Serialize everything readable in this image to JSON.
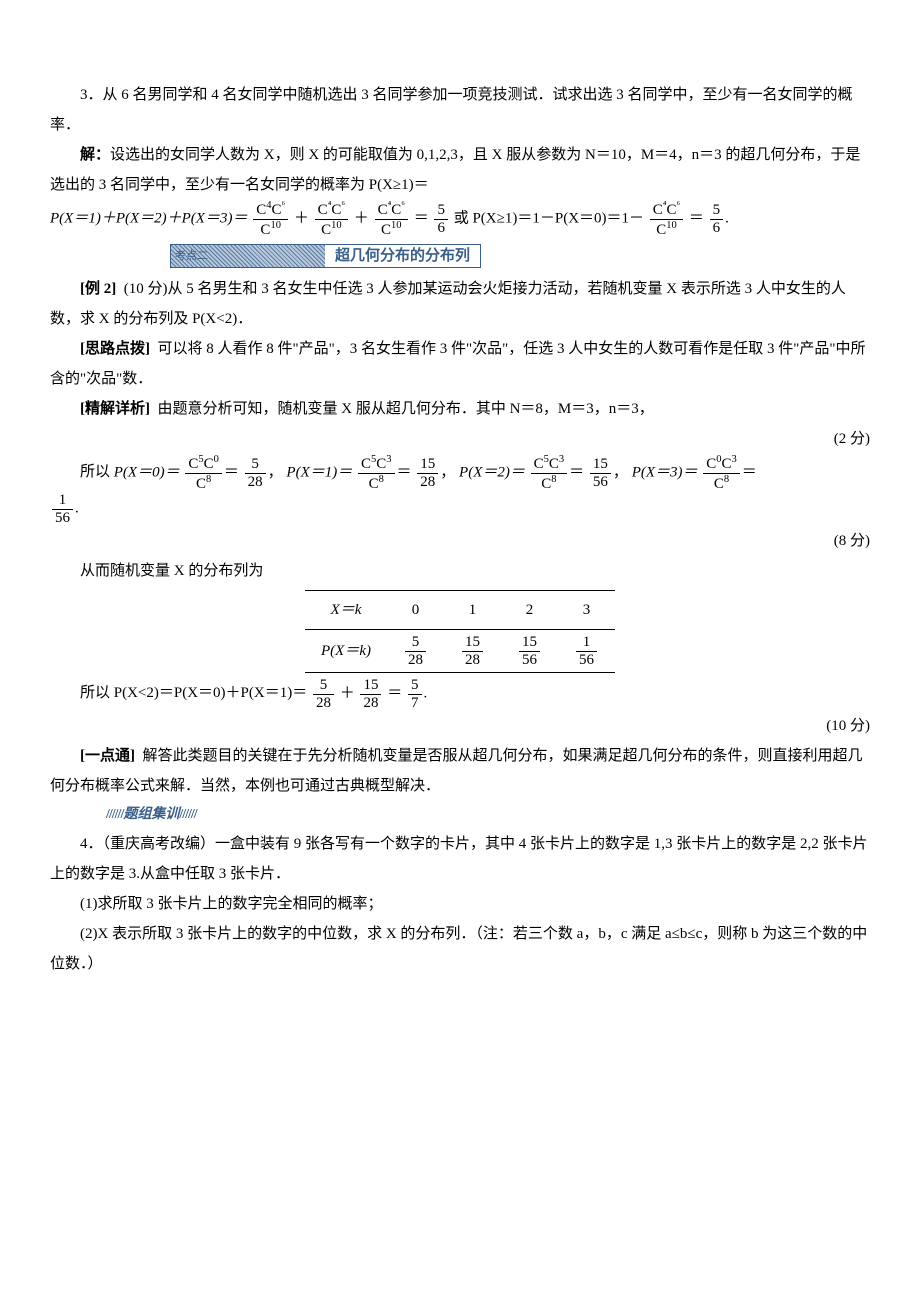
{
  "q3": {
    "text": "3．从 6 名男同学和 4 名女同学中随机选出 3 名同学参加一项竞技测试．试求出选 3 名同学中，至少有一名女同学的概率．",
    "sol_label": "解：",
    "sol_1": "设选出的女同学人数为 X，则 X 的可能取值为 0,1,2,3，且 X 服从参数为 N＝10，M＝4，n＝3 的超几何分布，于是选出的 3 名同学中，至少有一名女同学的概率为 P(X≥1)＝",
    "eq_prefix": "P(X＝1)＋P(X＝2)＋P(X＝3)＝",
    "C": "C",
    "sup41": "4",
    "sup1": "1",
    "sup62": "6",
    "sup2": "2",
    "sup10": "10",
    "sup3": "3",
    "sup40": "4",
    "sup0": "0",
    "sup63": "6",
    "eq56": "＝",
    "f5": "5",
    "f6": "6",
    "or_text": "或 P(X≥1)＝1－P(X＝0)＝1－",
    "eq_tail": "＝",
    "period": "."
  },
  "kd": {
    "label": "考点二",
    "title": "超几何分布的分布列"
  },
  "ex2": {
    "label": "[例 2]",
    "score": "(10 分)",
    "text": "从 5 名男生和 3 名女生中任选 3 人参加某运动会火炬接力活动，若随机变量 X 表示所选 3 人中女生的人数，求 X 的分布列及 P(X<2)．",
    "sl_label": "[思路点拨]",
    "sl_text": "可以将 8 人看作 8 件\"产品\"，3 名女生看作 3 件\"次品\"，任选 3 人中女生的人数可看作是任取 3 件\"产品\"中所含的\"次品\"数．",
    "jj_label": "[精解详析]",
    "jj_text": "由题意分析可知，随机变量 X 服从超几何分布．其中 N＝8，M＝3，n＝3，",
    "score2": "(2 分)",
    "so": "所以 ",
    "p0_l": "P(X＝0)＝",
    "p1_l": "P(X＝1)＝",
    "p2_l": "P(X＝2)＝",
    "p3_l": "P(X＝3)＝",
    "c35": "5",
    "c30": "0",
    "c8": "8",
    "c3": "3",
    "v528n": "5",
    "v528d": "28",
    "c52": "2",
    "c31": "1",
    "v1528n": "15",
    "v1528d": "28",
    "c51": "1",
    "c32": "2",
    "v1556n": "15",
    "v1556d": "56",
    "c50": "0",
    "c33": "3",
    "v156n": "1",
    "v156d": "56",
    "score8": "(8 分)",
    "tbl_intro": "从而随机变量 X 的分布列为",
    "tbl_xk": "X＝k",
    "tbl_pxk": "P(X＝k)",
    "tbl_0": "0",
    "tbl_1": "1",
    "tbl_2": "2",
    "tbl_3": "3",
    "so2": "所以 P(X<2)＝P(X＝0)＋P(X＝1)＝",
    "plus": "＋",
    "eqr": "＝",
    "f57n": "5",
    "f57d": "7",
    "score10": "(10 分)"
  },
  "ydt": {
    "label": "[一点通]",
    "text": "解答此类题目的关键在于先分析随机变量是否服从超几何分布，如果满足超几何分布的条件，则直接利用超几何分布概率公式来解．当然，本例也可通过古典概型解决．"
  },
  "tizu": {
    "slashes": "//////",
    "label": "题组集训"
  },
  "q4": {
    "label": "4．（重庆高考改编）",
    "text": "一盒中装有 9 张各写有一个数字的卡片，其中 4 张卡片上的数字是 1,3 张卡片上的数字是 2,2 张卡片上的数字是 3.从盒中任取 3 张卡片．",
    "p1": "(1)求所取 3 张卡片上的数字完全相同的概率；",
    "p2a": "(2)X 表示所取 3 张卡片上的数字的中位数，求 X 的分布列．（注：若三个数 a，b，c 满足 a≤b≤c，则称 b 为这三个数的中位数．）"
  }
}
